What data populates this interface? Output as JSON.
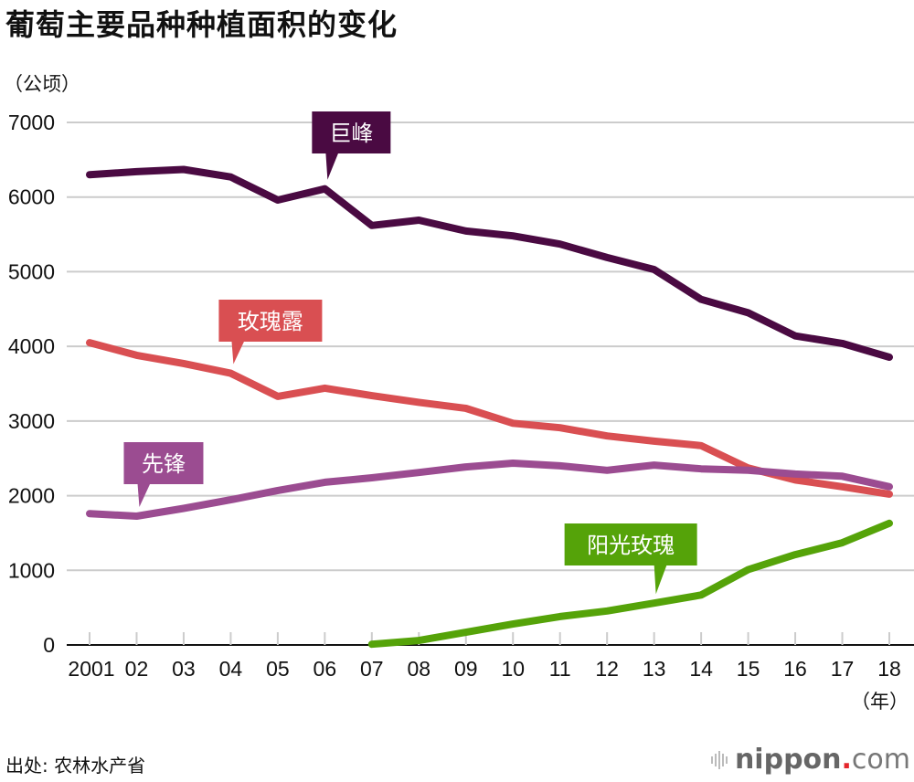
{
  "chart_data": {
    "type": "line",
    "title": "葡萄主要品种种植面积的变化",
    "ylabel": "（公顷）",
    "xlabel": "（年）",
    "ylim": [
      0,
      7000
    ],
    "yticks": [
      0,
      1000,
      2000,
      3000,
      4000,
      5000,
      6000,
      7000
    ],
    "ytick_labels": [
      "0",
      "1000",
      "2000",
      "3000",
      "4000",
      "5000",
      "6000",
      "7000"
    ],
    "x": [
      2001,
      2002,
      2003,
      2004,
      2005,
      2006,
      2007,
      2008,
      2009,
      2010,
      2011,
      2012,
      2013,
      2014,
      2015,
      2016,
      2017,
      2018
    ],
    "xtick_labels": [
      "2001",
      "02",
      "03",
      "04",
      "05",
      "06",
      "07",
      "08",
      "09",
      "10",
      "11",
      "12",
      "13",
      "14",
      "15",
      "16",
      "17",
      "18"
    ],
    "grid": true,
    "legend": "inline callouts",
    "series": [
      {
        "name": "巨峰",
        "color": "#4a0a42",
        "callout_at": 2006,
        "values": [
          6300,
          6340,
          6370,
          6270,
          5960,
          6110,
          5620,
          5690,
          5545,
          5480,
          5370,
          5190,
          5030,
          4630,
          4450,
          4140,
          4040,
          3855
        ]
      },
      {
        "name": "玫瑰露",
        "color": "#d94f52",
        "callout_at": 2004,
        "values": [
          4050,
          3880,
          3770,
          3640,
          3330,
          3440,
          3340,
          3250,
          3170,
          2970,
          2910,
          2800,
          2730,
          2670,
          2370,
          2210,
          2120,
          2020
        ]
      },
      {
        "name": "先锋",
        "color": "#9b4c91",
        "callout_at": 2002,
        "values": [
          1760,
          1725,
          1830,
          1945,
          2070,
          2180,
          2240,
          2310,
          2385,
          2435,
          2400,
          2340,
          2410,
          2360,
          2340,
          2290,
          2260,
          2120
        ]
      },
      {
        "name": "阳光玫瑰",
        "color": "#55a309",
        "callout_at": 2013,
        "values": [
          null,
          null,
          null,
          null,
          null,
          null,
          10,
          60,
          170,
          280,
          380,
          455,
          560,
          670,
          1010,
          1210,
          1370,
          1630
        ]
      }
    ]
  },
  "footer": {
    "source": "出处: 农林水产省",
    "logo_brand": "nippon",
    "logo_dot": ".",
    "logo_tld": "com"
  }
}
